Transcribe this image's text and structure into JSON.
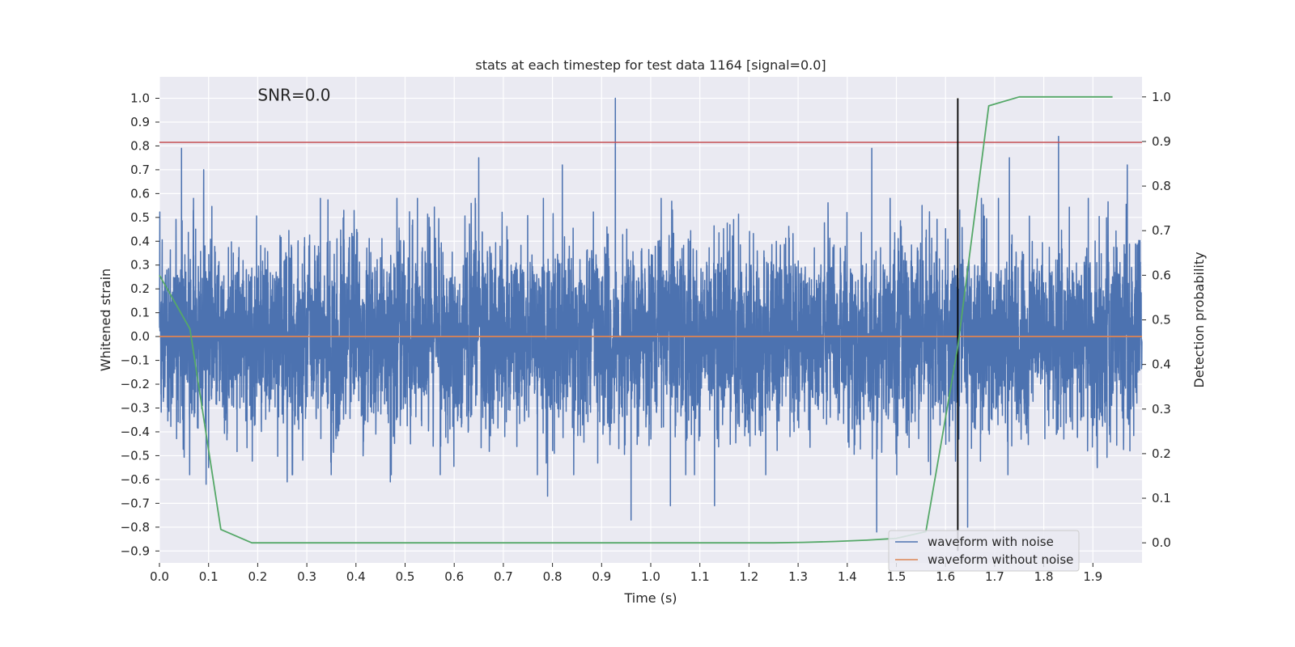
{
  "chart_data": {
    "type": "line",
    "title": "stats at each timestep for test data 1164 [signal=0.0]",
    "xlabel": "Time (s)",
    "ylabel": "Whitened strain",
    "y2label": "Detection probability",
    "xlim": [
      0.0,
      2.0
    ],
    "ylim": [
      -0.95,
      1.09
    ],
    "y2lim": [
      -0.045,
      1.045
    ],
    "grid": true,
    "x_ticks": [
      0.0,
      0.1,
      0.2,
      0.3,
      0.4,
      0.5,
      0.6,
      0.7,
      0.8,
      0.9,
      1.0,
      1.1,
      1.2,
      1.3,
      1.4,
      1.5,
      1.6,
      1.7,
      1.8,
      1.9
    ],
    "x_tick_labels": [
      "0.0",
      "0.1",
      "0.2",
      "0.3",
      "0.4",
      "0.5",
      "0.6",
      "0.7",
      "0.8",
      "0.9",
      "1.0",
      "1.1",
      "1.2",
      "1.3",
      "1.4",
      "1.5",
      "1.6",
      "1.7",
      "1.8",
      "1.9"
    ],
    "y_ticks": [
      1.0,
      0.9,
      0.8,
      0.7,
      0.6,
      0.5,
      0.4,
      0.3,
      0.2,
      0.1,
      0.0,
      -0.1,
      -0.2,
      -0.3,
      -0.4,
      -0.5,
      -0.6,
      -0.7,
      -0.8,
      -0.9
    ],
    "y_tick_labels": [
      "1.0",
      "0.9",
      "0.8",
      "0.7",
      "0.6",
      "0.5",
      "0.4",
      "0.3",
      "0.2",
      "0.1",
      "0.0",
      "−0.1",
      "−0.2",
      "−0.3",
      "−0.4",
      "−0.5",
      "−0.6",
      "−0.7",
      "−0.8",
      "−0.9"
    ],
    "y2_ticks": [
      1.0,
      0.9,
      0.8,
      0.7,
      0.6,
      0.5,
      0.4,
      0.3,
      0.2,
      0.1,
      0.0
    ],
    "y2_tick_labels": [
      "1.0",
      "0.9",
      "0.8",
      "0.7",
      "0.6",
      "0.5",
      "0.4",
      "0.3",
      "0.2",
      "0.1",
      "0.0"
    ],
    "annotation": "SNR=0.0",
    "annotation_at": [
      0.2,
      0.99
    ],
    "threshold_line": {
      "y": 0.815,
      "color": "#c44e52"
    },
    "vertical_line": {
      "x": 1.625,
      "y_range": [
        -0.9,
        1.0
      ],
      "color": "#000000"
    },
    "series": [
      {
        "name": "waveform with noise",
        "color": "#4c72b0",
        "description": "Dense noisy whitened strain, about 4096 samples per second, mostly within -0.4 to 0.4",
        "sample_rate": 4096,
        "typical_std": 0.2,
        "peaks": [
          {
            "t": 0.045,
            "v": 0.79
          },
          {
            "t": 0.09,
            "v": 0.7
          },
          {
            "t": 0.095,
            "v": -0.62
          },
          {
            "t": 0.1,
            "v": -0.55
          },
          {
            "t": 0.26,
            "v": -0.61
          },
          {
            "t": 0.47,
            "v": -0.61
          },
          {
            "t": 0.65,
            "v": 0.75
          },
          {
            "t": 0.79,
            "v": -0.67
          },
          {
            "t": 0.82,
            "v": 0.72
          },
          {
            "t": 0.928,
            "v": 1.0
          },
          {
            "t": 0.96,
            "v": -0.77
          },
          {
            "t": 1.04,
            "v": -0.71
          },
          {
            "t": 1.13,
            "v": -0.71
          },
          {
            "t": 1.45,
            "v": 0.79
          },
          {
            "t": 1.46,
            "v": -0.82
          },
          {
            "t": 1.645,
            "v": -0.8
          },
          {
            "t": 1.73,
            "v": 0.75
          },
          {
            "t": 1.83,
            "v": 0.84
          },
          {
            "t": 1.97,
            "v": 0.72
          }
        ]
      },
      {
        "name": "waveform without noise",
        "color": "#dd8452",
        "x": [
          0.0,
          2.0
        ],
        "values": [
          0.0,
          0.0
        ]
      },
      {
        "name": "detection probability",
        "axis": "right",
        "color": "#55a868",
        "x": [
          0.0,
          0.062,
          0.125,
          0.188,
          0.25,
          0.5,
          0.75,
          1.0,
          1.25,
          1.31,
          1.375,
          1.44,
          1.5,
          1.56,
          1.625,
          1.688,
          1.75,
          1.81,
          1.875,
          1.94
        ],
        "values": [
          0.6,
          0.48,
          0.03,
          0.0,
          0.0,
          0.0,
          0.0,
          0.0,
          0.0,
          0.001,
          0.003,
          0.006,
          0.01,
          0.025,
          0.44,
          0.98,
          1.0,
          1.0,
          1.0,
          1.0
        ]
      }
    ],
    "legend": {
      "position": "lower-right",
      "entries": [
        {
          "label": "waveform with noise",
          "color": "#4c72b0"
        },
        {
          "label": "waveform without noise",
          "color": "#dd8452"
        }
      ]
    }
  }
}
